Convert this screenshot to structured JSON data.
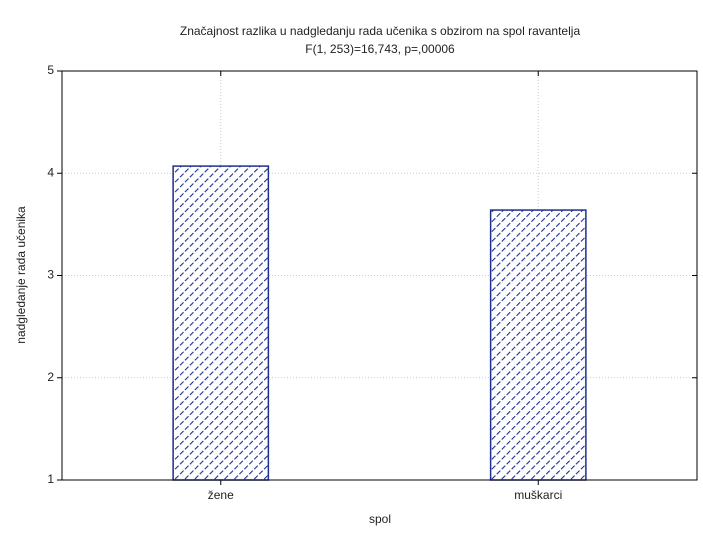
{
  "chart_data": {
    "type": "bar",
    "title": "Značajnost razlika u nadgledanju rada učenika s obzirom na spol ravantelja",
    "subtitle": "F(1, 253)=16,743, p=,00006",
    "x_label": "spol",
    "y_label": "nadgledanje rada učenika",
    "categories": [
      "žene",
      "muškarci"
    ],
    "values": [
      4.07,
      3.64
    ],
    "color": "#1f2f8f",
    "ylim": [
      1,
      5
    ],
    "yticks": [
      1,
      2,
      3,
      4,
      5
    ],
    "grid": true
  }
}
